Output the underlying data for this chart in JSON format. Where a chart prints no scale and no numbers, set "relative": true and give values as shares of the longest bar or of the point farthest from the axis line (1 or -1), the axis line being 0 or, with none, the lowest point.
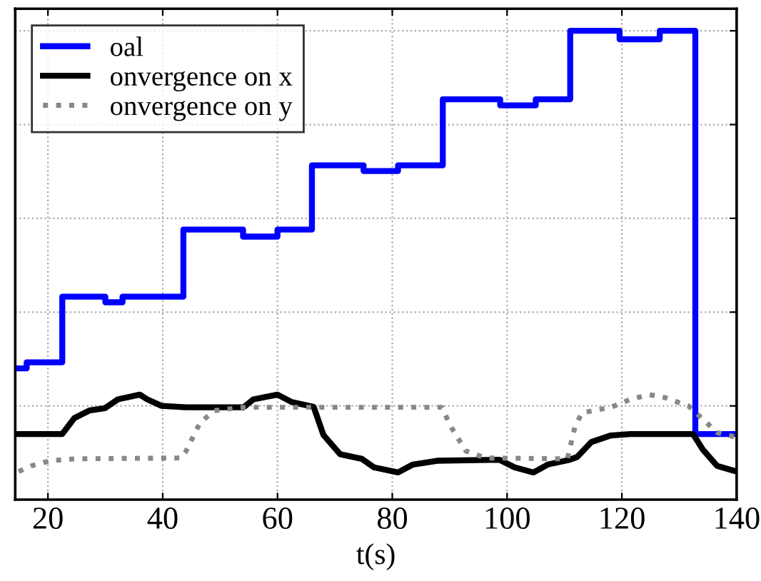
{
  "chart_data": {
    "type": "line",
    "relative": true,
    "xlabel": "t(s)",
    "xlim": [
      14.3,
      140
    ],
    "xticks": [
      20,
      40,
      60,
      80,
      100,
      120,
      140
    ],
    "grid": true,
    "legend": "top left",
    "tick_labels": "x",
    "series": [
      {
        "name": "oal",
        "type": "step",
        "color": "#0000ff",
        "line_style": "solid",
        "x": [
          14.3,
          16.3,
          22.5,
          30,
          33,
          43.6,
          54,
          60,
          66,
          75,
          81,
          88.8,
          98.8,
          105,
          111,
          119.6,
          126.6,
          132.8,
          140
        ],
        "values": [
          0.28,
          0.293,
          0.433,
          0.421,
          0.433,
          0.576,
          0.561,
          0.576,
          0.713,
          0.701,
          0.713,
          0.854,
          0.841,
          0.854,
          1.0,
          0.982,
          1.0,
          0.14,
          0.14
        ]
      },
      {
        "name": "onvergence on x",
        "color": "#000000",
        "line_style": "solid",
        "x": [
          14.9,
          22.5,
          24.6,
          27.2,
          29.9,
          32.2,
          36.0,
          37.3,
          39.8,
          44.0,
          54.1,
          55.8,
          60.0,
          62.5,
          66.3,
          68.0,
          70.9,
          74.7,
          76.8,
          81.0,
          83.6,
          87.8,
          98.7,
          101.3,
          104.6,
          107.1,
          110.9,
          112.2,
          114.7,
          118.1,
          121.5,
          132.4,
          134.1,
          136.6,
          140
        ],
        "values": [
          0.14,
          0.14,
          0.174,
          0.19,
          0.195,
          0.214,
          0.224,
          0.214,
          0.2,
          0.197,
          0.197,
          0.214,
          0.224,
          0.208,
          0.198,
          0.138,
          0.097,
          0.087,
          0.069,
          0.058,
          0.075,
          0.083,
          0.085,
          0.069,
          0.058,
          0.075,
          0.085,
          0.091,
          0.123,
          0.137,
          0.14,
          0.14,
          0.107,
          0.072,
          0.06
        ]
      },
      {
        "name": "onvergence on y",
        "color": "#888888",
        "line_style": "dotted",
        "x": [
          14.9,
          17.1,
          20.4,
          24.6,
          43.2,
          44.0,
          46.5,
          49.0,
          54.1,
          88.6,
          90.3,
          92.8,
          96.2,
          110.5,
          111.8,
          113.0,
          118.1,
          121.5,
          124.8,
          127.4,
          131.6,
          133.9,
          136.6,
          140
        ],
        "values": [
          0.06,
          0.072,
          0.083,
          0.087,
          0.089,
          0.102,
          0.164,
          0.19,
          0.197,
          0.197,
          0.154,
          0.104,
          0.089,
          0.087,
          0.154,
          0.185,
          0.197,
          0.214,
          0.224,
          0.218,
          0.2,
          0.174,
          0.143,
          0.133
        ]
      }
    ]
  }
}
